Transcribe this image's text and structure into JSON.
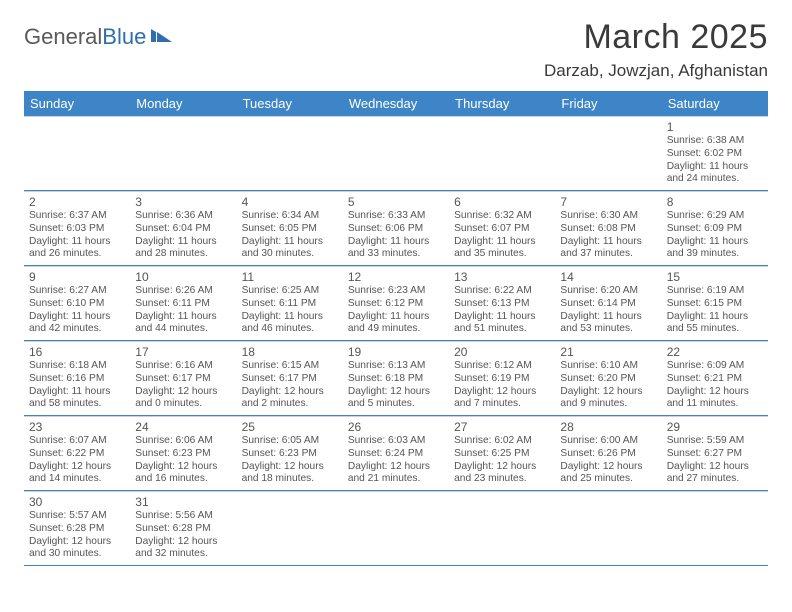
{
  "brand": {
    "part1": "General",
    "part2": "Blue"
  },
  "title": "March 2025",
  "location": "Darzab, Jowzjan, Afghanistan",
  "colors": {
    "header_bg": "#3d85c6",
    "header_text": "#ffffff",
    "text": "#555555",
    "rule": "#3d85c6",
    "cell_border": "#d0d0d0"
  },
  "weekdays": [
    "Sunday",
    "Monday",
    "Tuesday",
    "Wednesday",
    "Thursday",
    "Friday",
    "Saturday"
  ],
  "weeks": [
    [
      null,
      null,
      null,
      null,
      null,
      null,
      {
        "n": "1",
        "sr": "Sunrise: 6:38 AM",
        "ss": "Sunset: 6:02 PM",
        "d1": "Daylight: 11 hours",
        "d2": "and 24 minutes."
      }
    ],
    [
      {
        "n": "2",
        "sr": "Sunrise: 6:37 AM",
        "ss": "Sunset: 6:03 PM",
        "d1": "Daylight: 11 hours",
        "d2": "and 26 minutes."
      },
      {
        "n": "3",
        "sr": "Sunrise: 6:36 AM",
        "ss": "Sunset: 6:04 PM",
        "d1": "Daylight: 11 hours",
        "d2": "and 28 minutes."
      },
      {
        "n": "4",
        "sr": "Sunrise: 6:34 AM",
        "ss": "Sunset: 6:05 PM",
        "d1": "Daylight: 11 hours",
        "d2": "and 30 minutes."
      },
      {
        "n": "5",
        "sr": "Sunrise: 6:33 AM",
        "ss": "Sunset: 6:06 PM",
        "d1": "Daylight: 11 hours",
        "d2": "and 33 minutes."
      },
      {
        "n": "6",
        "sr": "Sunrise: 6:32 AM",
        "ss": "Sunset: 6:07 PM",
        "d1": "Daylight: 11 hours",
        "d2": "and 35 minutes."
      },
      {
        "n": "7",
        "sr": "Sunrise: 6:30 AM",
        "ss": "Sunset: 6:08 PM",
        "d1": "Daylight: 11 hours",
        "d2": "and 37 minutes."
      },
      {
        "n": "8",
        "sr": "Sunrise: 6:29 AM",
        "ss": "Sunset: 6:09 PM",
        "d1": "Daylight: 11 hours",
        "d2": "and 39 minutes."
      }
    ],
    [
      {
        "n": "9",
        "sr": "Sunrise: 6:27 AM",
        "ss": "Sunset: 6:10 PM",
        "d1": "Daylight: 11 hours",
        "d2": "and 42 minutes."
      },
      {
        "n": "10",
        "sr": "Sunrise: 6:26 AM",
        "ss": "Sunset: 6:11 PM",
        "d1": "Daylight: 11 hours",
        "d2": "and 44 minutes."
      },
      {
        "n": "11",
        "sr": "Sunrise: 6:25 AM",
        "ss": "Sunset: 6:11 PM",
        "d1": "Daylight: 11 hours",
        "d2": "and 46 minutes."
      },
      {
        "n": "12",
        "sr": "Sunrise: 6:23 AM",
        "ss": "Sunset: 6:12 PM",
        "d1": "Daylight: 11 hours",
        "d2": "and 49 minutes."
      },
      {
        "n": "13",
        "sr": "Sunrise: 6:22 AM",
        "ss": "Sunset: 6:13 PM",
        "d1": "Daylight: 11 hours",
        "d2": "and 51 minutes."
      },
      {
        "n": "14",
        "sr": "Sunrise: 6:20 AM",
        "ss": "Sunset: 6:14 PM",
        "d1": "Daylight: 11 hours",
        "d2": "and 53 minutes."
      },
      {
        "n": "15",
        "sr": "Sunrise: 6:19 AM",
        "ss": "Sunset: 6:15 PM",
        "d1": "Daylight: 11 hours",
        "d2": "and 55 minutes."
      }
    ],
    [
      {
        "n": "16",
        "sr": "Sunrise: 6:18 AM",
        "ss": "Sunset: 6:16 PM",
        "d1": "Daylight: 11 hours",
        "d2": "and 58 minutes."
      },
      {
        "n": "17",
        "sr": "Sunrise: 6:16 AM",
        "ss": "Sunset: 6:17 PM",
        "d1": "Daylight: 12 hours",
        "d2": "and 0 minutes."
      },
      {
        "n": "18",
        "sr": "Sunrise: 6:15 AM",
        "ss": "Sunset: 6:17 PM",
        "d1": "Daylight: 12 hours",
        "d2": "and 2 minutes."
      },
      {
        "n": "19",
        "sr": "Sunrise: 6:13 AM",
        "ss": "Sunset: 6:18 PM",
        "d1": "Daylight: 12 hours",
        "d2": "and 5 minutes."
      },
      {
        "n": "20",
        "sr": "Sunrise: 6:12 AM",
        "ss": "Sunset: 6:19 PM",
        "d1": "Daylight: 12 hours",
        "d2": "and 7 minutes."
      },
      {
        "n": "21",
        "sr": "Sunrise: 6:10 AM",
        "ss": "Sunset: 6:20 PM",
        "d1": "Daylight: 12 hours",
        "d2": "and 9 minutes."
      },
      {
        "n": "22",
        "sr": "Sunrise: 6:09 AM",
        "ss": "Sunset: 6:21 PM",
        "d1": "Daylight: 12 hours",
        "d2": "and 11 minutes."
      }
    ],
    [
      {
        "n": "23",
        "sr": "Sunrise: 6:07 AM",
        "ss": "Sunset: 6:22 PM",
        "d1": "Daylight: 12 hours",
        "d2": "and 14 minutes."
      },
      {
        "n": "24",
        "sr": "Sunrise: 6:06 AM",
        "ss": "Sunset: 6:23 PM",
        "d1": "Daylight: 12 hours",
        "d2": "and 16 minutes."
      },
      {
        "n": "25",
        "sr": "Sunrise: 6:05 AM",
        "ss": "Sunset: 6:23 PM",
        "d1": "Daylight: 12 hours",
        "d2": "and 18 minutes."
      },
      {
        "n": "26",
        "sr": "Sunrise: 6:03 AM",
        "ss": "Sunset: 6:24 PM",
        "d1": "Daylight: 12 hours",
        "d2": "and 21 minutes."
      },
      {
        "n": "27",
        "sr": "Sunrise: 6:02 AM",
        "ss": "Sunset: 6:25 PM",
        "d1": "Daylight: 12 hours",
        "d2": "and 23 minutes."
      },
      {
        "n": "28",
        "sr": "Sunrise: 6:00 AM",
        "ss": "Sunset: 6:26 PM",
        "d1": "Daylight: 12 hours",
        "d2": "and 25 minutes."
      },
      {
        "n": "29",
        "sr": "Sunrise: 5:59 AM",
        "ss": "Sunset: 6:27 PM",
        "d1": "Daylight: 12 hours",
        "d2": "and 27 minutes."
      }
    ],
    [
      {
        "n": "30",
        "sr": "Sunrise: 5:57 AM",
        "ss": "Sunset: 6:28 PM",
        "d1": "Daylight: 12 hours",
        "d2": "and 30 minutes."
      },
      {
        "n": "31",
        "sr": "Sunrise: 5:56 AM",
        "ss": "Sunset: 6:28 PM",
        "d1": "Daylight: 12 hours",
        "d2": "and 32 minutes."
      },
      null,
      null,
      null,
      null,
      null
    ]
  ]
}
